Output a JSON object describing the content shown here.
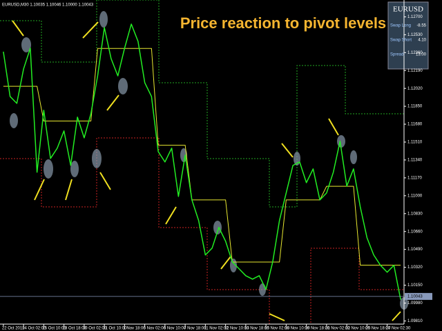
{
  "chart_data": {
    "type": "line",
    "title": "Price reaction to pivot levels",
    "symbol_label": "EURUSD,M30 1.10035 1.10046 1.10000 1.10043",
    "panel": {
      "symbol": "EURUSD",
      "rows": [
        [
          "Swap Long",
          "-8.55"
        ],
        [
          "Swap Short",
          "4.10"
        ],
        [
          "Spread:",
          "13.00"
        ]
      ]
    },
    "categories": [
      "22 Oct 2019",
      null,
      null,
      "24 Oct 02:00",
      null,
      null,
      "25 Oct 10:00",
      null,
      null,
      "28 Oct 18:00",
      null,
      null,
      "30 Oct 02:00",
      null,
      null,
      "31 Oct 10:00",
      null,
      null,
      "1 Nov 18:00",
      null,
      null,
      "5 Nov 02:00",
      null,
      null,
      "6 Nov 10:00",
      null,
      null,
      "7 Nov 18:00",
      null,
      null,
      "11 Nov 02:00",
      null,
      null,
      "12 Nov 10:00",
      null,
      null,
      "13 Nov 18:00",
      null,
      null,
      "15 Nov 02:00",
      null,
      null,
      "18 Nov 10:00",
      null,
      null,
      "19 Nov 18:00",
      null,
      null,
      "21 Nov 02:00",
      null,
      null,
      "22 Nov 10:00",
      null,
      null,
      "25 Nov 18:00",
      null,
      null,
      "27 Nov 02:30",
      null,
      null
    ],
    "series": [
      {
        "name": "EURUSD",
        "color": "#22ee22",
        "values": [
          1.12369,
          1.11943,
          1.11878,
          1.12205,
          1.12402,
          1.11223,
          1.11812,
          1.11354,
          1.11452,
          1.11616,
          1.11288,
          1.11747,
          1.1155,
          1.11779,
          1.12139,
          1.12598,
          1.12303,
          1.12139,
          1.12402,
          1.12631,
          1.12467,
          1.12074,
          1.11943,
          1.11419,
          1.11321,
          1.11452,
          1.10993,
          1.11386,
          1.1096,
          1.10764,
          1.10437,
          1.10502,
          1.10699,
          1.10568,
          1.10371,
          1.10306,
          1.1024,
          1.10207,
          1.1024,
          1.10109,
          1.10371,
          1.10764,
          1.11026,
          1.11288,
          1.11321,
          1.11124,
          1.11255,
          1.1096,
          1.11026,
          1.11223,
          1.11518,
          1.11092,
          1.11255,
          1.10895,
          1.10601,
          1.10437,
          1.10339,
          1.10273,
          1.10339,
          1.10012
        ]
      },
      {
        "color": "#e8e830",
        "values": [
          1.1204,
          1.1204,
          1.1204,
          1.1204,
          1.1204,
          1.1204,
          1.1171,
          1.1171,
          1.1171,
          1.1171,
          1.1171,
          1.1171,
          1.1171,
          1.1171,
          1.124,
          1.124,
          1.124,
          1.124,
          1.124,
          1.124,
          1.124,
          1.124,
          1.124,
          1.1148,
          1.1148,
          1.1148,
          1.1148,
          1.1148,
          1.1096,
          1.1096,
          1.1096,
          1.1096,
          1.1096,
          1.1096,
          1.1037,
          1.1037,
          1.1037,
          1.1037,
          1.1037,
          1.1037,
          1.1037,
          1.1037,
          1.1096,
          1.1096,
          1.1096,
          1.1096,
          1.1096,
          1.1096,
          1.1109,
          1.1109,
          1.1109,
          1.1109,
          1.1109,
          1.1034,
          1.1034,
          1.1034,
          1.1034,
          1.1034,
          1.1034,
          1.1034
        ]
      }
    ],
    "current_price": 1.10043,
    "ylim": [
      1.0978,
      1.1286
    ],
    "yticks": [
      {
        "value": 1.0981,
        "label": "1.09810"
      },
      {
        "value": 1.0998,
        "label": "1.09980"
      },
      {
        "value": 1.1015,
        "label": "1.10150"
      },
      {
        "value": 1.1032,
        "label": "1.10320"
      },
      {
        "value": 1.1049,
        "label": "1.10490"
      },
      {
        "value": 1.1066,
        "label": "1.10660"
      },
      {
        "value": 1.1083,
        "label": "1.10830"
      },
      {
        "value": 1.11,
        "label": "1.11000"
      },
      {
        "value": 1.1117,
        "label": "1.11170"
      },
      {
        "value": 1.1134,
        "label": "1.11340"
      },
      {
        "value": 1.1151,
        "label": "1.11510"
      },
      {
        "value": 1.1168,
        "label": "1.11680"
      },
      {
        "value": 1.1185,
        "label": "1.11850"
      },
      {
        "value": 1.1202,
        "label": "1.12020"
      },
      {
        "value": 1.1219,
        "label": "1.12190"
      },
      {
        "value": 1.1236,
        "label": "1.12360"
      },
      {
        "value": 1.1253,
        "label": "1.12530"
      },
      {
        "value": 1.127,
        "label": "1.12700"
      }
    ],
    "grid": false
  }
}
